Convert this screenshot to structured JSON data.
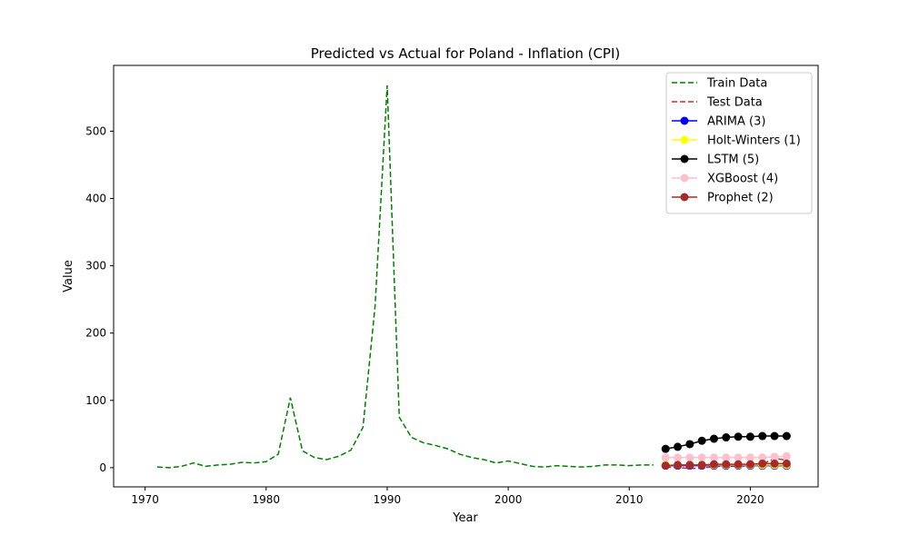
{
  "chart_data": {
    "type": "line",
    "title": "Predicted vs Actual for Poland - Inflation (CPI)",
    "xlabel": "Year",
    "ylabel": "Value",
    "xlim": [
      1967.4,
      2025.6
    ],
    "ylim": [
      -28.5,
      597.7
    ],
    "xticks": [
      1970,
      1980,
      1990,
      2000,
      2010,
      2020
    ],
    "yticks": [
      0,
      100,
      200,
      300,
      400,
      500
    ],
    "grid": false,
    "legend_position": "top-right",
    "series": [
      {
        "name": "Train Data",
        "color": "#008000",
        "style": "dashed",
        "marker": false,
        "x": [
          1971,
          1972,
          1973,
          1974,
          1975,
          1976,
          1977,
          1978,
          1979,
          1980,
          1981,
          1982,
          1983,
          1984,
          1985,
          1986,
          1987,
          1988,
          1989,
          1990,
          1991,
          1992,
          1993,
          1994,
          1995,
          1996,
          1997,
          1998,
          1999,
          2000,
          2001,
          2002,
          2003,
          2004,
          2005,
          2006,
          2007,
          2008,
          2009,
          2010,
          2011,
          2012
        ],
        "y": [
          1,
          0,
          2,
          7,
          2,
          4,
          5,
          8,
          7,
          9,
          20,
          104,
          25,
          15,
          12,
          17,
          26,
          60,
          240,
          568,
          75,
          45,
          37,
          33,
          28,
          20,
          15,
          12,
          7,
          10,
          6,
          2,
          1,
          3,
          2,
          1,
          2,
          4,
          4,
          3,
          4,
          4
        ]
      },
      {
        "name": "Test Data",
        "color": "#d62728",
        "style": "dashed",
        "marker": false,
        "x": [
          2013,
          2014,
          2015,
          2016,
          2017,
          2018,
          2019,
          2020,
          2021,
          2022,
          2023
        ],
        "y": [
          1,
          0,
          -1,
          -1,
          2,
          2,
          2,
          3,
          5,
          14,
          11
        ]
      },
      {
        "name": "ARIMA (3)",
        "color": "#0000ff",
        "style": "solid",
        "marker": true,
        "x": [
          2013,
          2014,
          2015,
          2016,
          2017,
          2018,
          2019,
          2020,
          2021,
          2022,
          2023
        ],
        "y": [
          3,
          3,
          3,
          3,
          3,
          3,
          3,
          3,
          3,
          3,
          3
        ]
      },
      {
        "name": "Holt-Winters (1)",
        "color": "#ffff00",
        "style": "solid",
        "marker": true,
        "x": [
          2013,
          2014,
          2015,
          2016,
          2017,
          2018,
          2019,
          2020,
          2021,
          2022,
          2023
        ],
        "y": [
          4,
          4,
          4,
          4,
          4,
          4,
          4,
          4,
          4,
          4,
          4
        ]
      },
      {
        "name": "LSTM (5)",
        "color": "#000000",
        "style": "solid",
        "marker": true,
        "x": [
          2013,
          2014,
          2015,
          2016,
          2017,
          2018,
          2019,
          2020,
          2021,
          2022,
          2023
        ],
        "y": [
          28,
          31,
          35,
          40,
          43,
          45,
          46,
          46,
          47,
          47,
          47
        ]
      },
      {
        "name": "XGBoost (4)",
        "color": "#ffc0cb",
        "style": "solid",
        "marker": true,
        "x": [
          2013,
          2014,
          2015,
          2016,
          2017,
          2018,
          2019,
          2020,
          2021,
          2022,
          2023
        ],
        "y": [
          15,
          15,
          15,
          15,
          15,
          15,
          15,
          15,
          15,
          16,
          17
        ]
      },
      {
        "name": "Prophet (2)",
        "color": "#a52a2a",
        "style": "solid",
        "marker": true,
        "x": [
          2013,
          2014,
          2015,
          2016,
          2017,
          2018,
          2019,
          2020,
          2021,
          2022,
          2023
        ],
        "y": [
          3,
          4,
          4,
          4,
          5,
          5,
          5,
          5,
          6,
          6,
          6
        ]
      }
    ]
  }
}
